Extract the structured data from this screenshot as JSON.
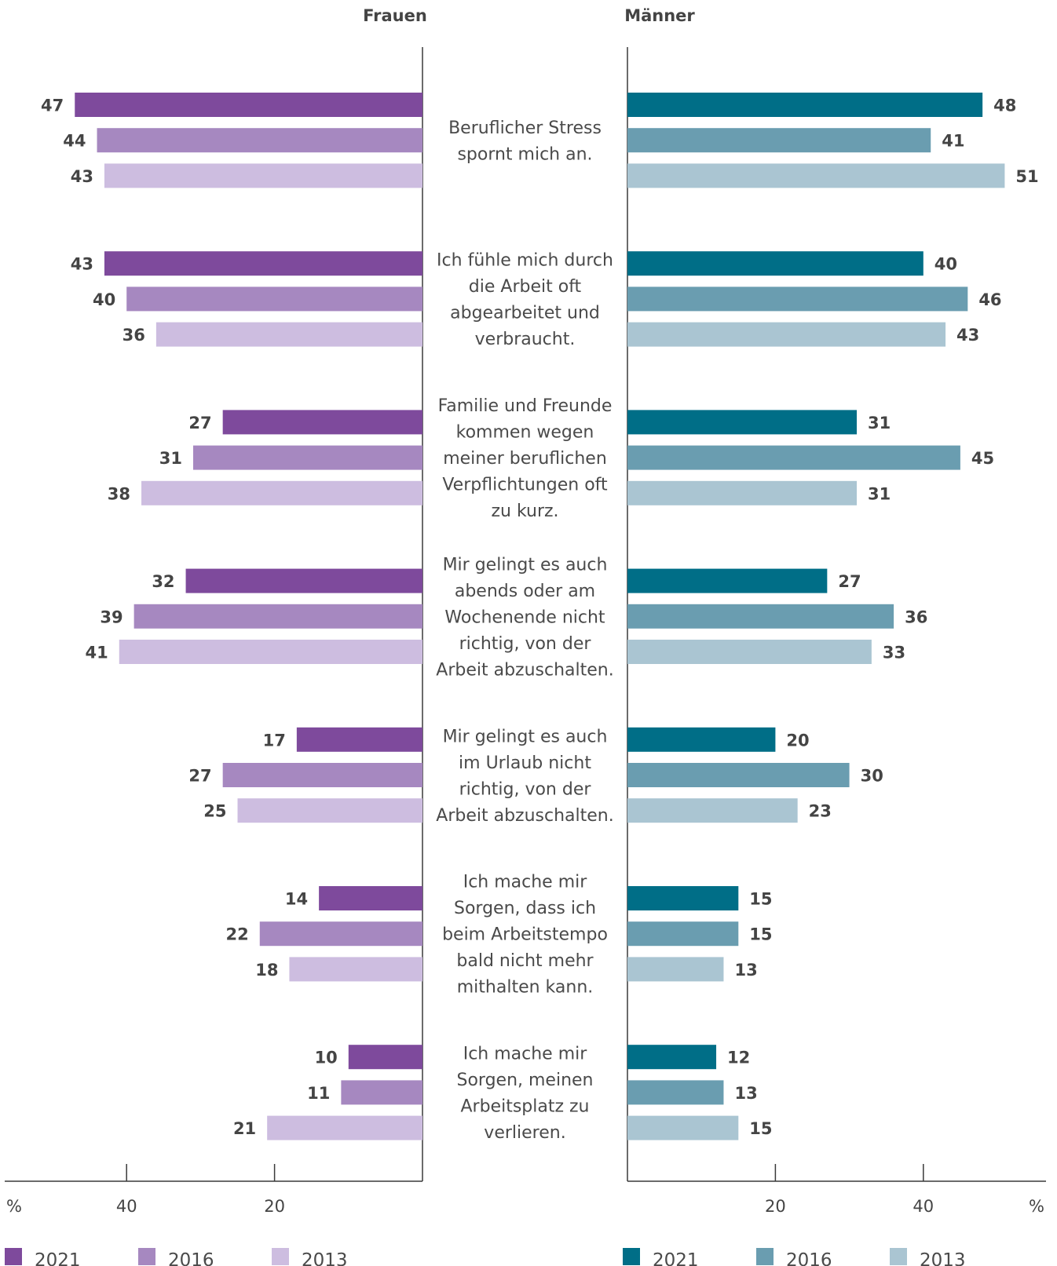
{
  "chart_data": {
    "type": "bar",
    "orientation": "horizontal",
    "layout": "butterfly",
    "unit_label": "%",
    "categories": [
      "Beruflicher Stress spornt mich an.",
      "Ich fühle mich durch die Arbeit oft abgearbeitet und verbraucht.",
      "Familie und Freunde kommen wegen meiner beruflichen Verpflichtungen oft zu kurz.",
      "Mir gelingt es auch abends oder am Wochenende nicht richtig, von der Arbeit abzuschalten.",
      "Mir gelingt es auch im Urlaub nicht richtig, von der Arbeit abzuschalten.",
      "Ich mache mir Sorgen, dass ich beim Arbeitstempo bald nicht mehr mithalten kann.",
      "Ich mache mir Sorgen, meinen Arbeitsplatz zu verlieren."
    ],
    "category_lines": [
      [
        "Beruflicher Stress",
        "spornt mich an."
      ],
      [
        "Ich fühle mich durch",
        "die Arbeit oft",
        "abgearbeitet und",
        "verbraucht."
      ],
      [
        "Familie und Freunde",
        "kommen wegen",
        "meiner beruflichen",
        "Verpflichtungen oft",
        "zu kurz."
      ],
      [
        "Mir gelingt es auch",
        "abends oder am",
        "Wochenende nicht",
        "richtig, von der",
        "Arbeit abzuschalten."
      ],
      [
        "Mir gelingt es auch",
        "im Urlaub nicht",
        "richtig, von der",
        "Arbeit abzuschalten."
      ],
      [
        "Ich mache mir",
        "Sorgen, dass ich",
        "beim Arbeitstempo",
        "bald nicht mehr",
        "mithalten kann."
      ],
      [
        "Ich mache mir",
        "Sorgen, meinen",
        "Arbeitsplatz zu",
        "verlieren."
      ]
    ],
    "groups": [
      {
        "name": "Frauen",
        "xlim": [
          0,
          57
        ],
        "ticks": [
          40,
          20
        ],
        "series": [
          {
            "name": "2021",
            "color": "#7e4a9c",
            "values": [
              47,
              43,
              27,
              32,
              17,
              14,
              10
            ]
          },
          {
            "name": "2016",
            "color": "#a688c0",
            "values": [
              44,
              40,
              31,
              39,
              27,
              22,
              11
            ]
          },
          {
            "name": "2013",
            "color": "#cdbde0",
            "values": [
              43,
              36,
              38,
              41,
              25,
              18,
              21
            ]
          }
        ]
      },
      {
        "name": "Männer",
        "xlim": [
          0,
          57
        ],
        "ticks": [
          20,
          40
        ],
        "series": [
          {
            "name": "2021",
            "color": "#006e87",
            "values": [
              48,
              40,
              31,
              27,
              20,
              15,
              12
            ]
          },
          {
            "name": "2016",
            "color": "#6a9db0",
            "values": [
              41,
              46,
              45,
              36,
              30,
              15,
              13
            ]
          },
          {
            "name": "2013",
            "color": "#aac5d2",
            "values": [
              51,
              43,
              31,
              33,
              23,
              13,
              15
            ]
          }
        ]
      }
    ],
    "legend": "bottom",
    "grid": false
  }
}
